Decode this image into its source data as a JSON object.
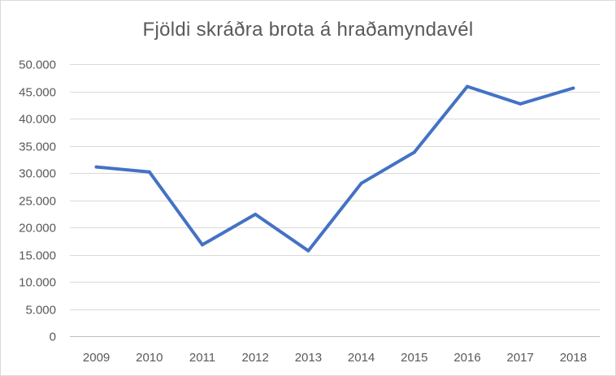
{
  "chart_data": {
    "type": "line",
    "title": "Fjöldi skráðra brota á hraðamyndavél",
    "xlabel": "",
    "ylabel": "",
    "categories": [
      "2009",
      "2010",
      "2011",
      "2012",
      "2013",
      "2014",
      "2015",
      "2016",
      "2017",
      "2018"
    ],
    "series": [
      {
        "values": [
          31100,
          30200,
          16800,
          22400,
          15700,
          28100,
          33800,
          45900,
          42700,
          45600
        ]
      }
    ],
    "ylim": [
      0,
      50000
    ],
    "yticks": [
      0,
      5000,
      10000,
      15000,
      20000,
      25000,
      30000,
      35000,
      40000,
      45000,
      50000
    ],
    "ytick_labels": [
      "0",
      "5.000",
      "10.000",
      "15.000",
      "20.000",
      "25.000",
      "30.000",
      "35.000",
      "40.000",
      "45.000",
      "50.000"
    ],
    "grid": true,
    "legend": "none",
    "colors": {
      "line": "#4472c4",
      "grid": "#d9d9d9",
      "text": "#595959"
    }
  }
}
